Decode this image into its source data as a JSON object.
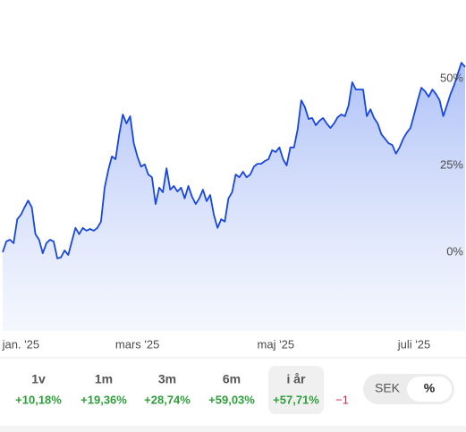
{
  "chart_data": {
    "type": "line",
    "series": [
      {
        "color": "#1747e0",
        "values": [
          0,
          3.1,
          3.6,
          2.6,
          9.5,
          10.8,
          12.9,
          14.9,
          12.9,
          5.2,
          3.6,
          -0.3,
          2.6,
          3.6,
          3.1,
          -1.8,
          -1.5,
          0.5,
          -0.8,
          3.1,
          7.0,
          5.2,
          7.0,
          6.2,
          6.7,
          6.2,
          7.0,
          8.8,
          18.6,
          23.7,
          27.6,
          26.8,
          34.0,
          39.7,
          37.1,
          39.2,
          31.4,
          27.6,
          24.7,
          25.3,
          22.4,
          21.6,
          13.9,
          18.6,
          17.3,
          24.2,
          18.0,
          19.1,
          17.5,
          18.6,
          15.5,
          19.1,
          16.0,
          13.9,
          15.5,
          18.0,
          14.7,
          16.5,
          10.8,
          7.0,
          9.5,
          8.8,
          15.5,
          17.3,
          22.4,
          21.6,
          23.2,
          21.6,
          22.4,
          24.7,
          25.5,
          25.5,
          26.3,
          26.8,
          29.4,
          28.9,
          30.2,
          26.8,
          25.0,
          30.2,
          30.2,
          35.3,
          43.8,
          41.8,
          38.4,
          38.7,
          36.6,
          37.9,
          38.7,
          37.1,
          35.8,
          37.1,
          38.9,
          39.7,
          39.2,
          42.3,
          49.0,
          46.9,
          46.9,
          46.9,
          39.2,
          41.2,
          38.7,
          37.1,
          34.0,
          32.7,
          31.4,
          30.9,
          28.4,
          30.2,
          32.7,
          34.5,
          35.8,
          39.7,
          43.8,
          47.4,
          46.4,
          44.8,
          46.9,
          45.6,
          43.8,
          39.2,
          42.3,
          45.6,
          48.2,
          51.5,
          54.6,
          53.4
        ]
      }
    ],
    "ylim": [
      -22.7,
      72.7
    ],
    "yticks": [
      {
        "value": 0,
        "label": "0%"
      },
      {
        "value": 25,
        "label": "25%"
      },
      {
        "value": 50,
        "label": "50%"
      }
    ],
    "xticks": [
      {
        "value": 5,
        "label": "jan. '25"
      },
      {
        "value": 37,
        "label": "mars '25"
      },
      {
        "value": 75,
        "label": "maj '25"
      },
      {
        "value": 113,
        "label": "juli '25"
      }
    ],
    "grid": false
  },
  "periods": [
    {
      "label": "1v",
      "change": "+10,18%"
    },
    {
      "label": "1m",
      "change": "+19,36%"
    },
    {
      "label": "3m",
      "change": "+28,74%"
    },
    {
      "label": "6m",
      "change": "+59,03%"
    },
    {
      "label": "i år",
      "change": "+57,71%"
    }
  ],
  "cut_off_change": "−1",
  "unit_toggle": [
    "SEK",
    "%"
  ]
}
